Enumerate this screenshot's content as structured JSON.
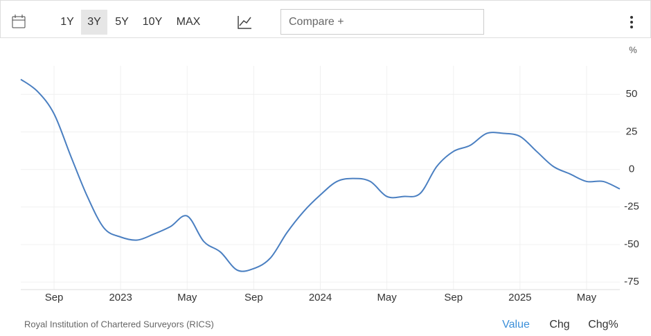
{
  "toolbar": {
    "ranges": [
      "1Y",
      "3Y",
      "5Y",
      "10Y",
      "MAX"
    ],
    "selected": "3Y",
    "compare": "Compare +"
  },
  "chart_data": {
    "type": "line",
    "y_label": "%",
    "categories": [
      null,
      null,
      "Sep",
      null,
      null,
      null,
      "2023",
      null,
      null,
      null,
      "May",
      null,
      null,
      null,
      "Sep",
      null,
      null,
      null,
      "2024",
      null,
      null,
      null,
      "May",
      null,
      null,
      null,
      "Sep",
      null,
      null,
      null,
      "2025",
      null,
      null,
      null,
      "May",
      null,
      null
    ],
    "series": [
      {
        "name": "Value",
        "color": "#4a7fc1",
        "values": [
          60,
          52,
          37,
          9,
          -18,
          -39,
          -45,
          -47,
          -43,
          -38,
          -31,
          -48,
          -55,
          -67,
          -66,
          -59,
          -42,
          -28,
          -17,
          -8,
          -6,
          -8,
          -18,
          -18,
          -16,
          2,
          12,
          16,
          24,
          24,
          22,
          12,
          2,
          -3,
          -8,
          -8,
          -13
        ]
      }
    ],
    "ylim": [
      -80,
      69
    ],
    "yticks": [
      50,
      25,
      0,
      -25,
      -50,
      -75
    ],
    "grid": true
  },
  "footer": {
    "source": "Royal Institution of Chartered Surveyors (RICS)",
    "tabs": [
      "Value",
      "Chg",
      "Chg%"
    ],
    "active": "Value"
  }
}
